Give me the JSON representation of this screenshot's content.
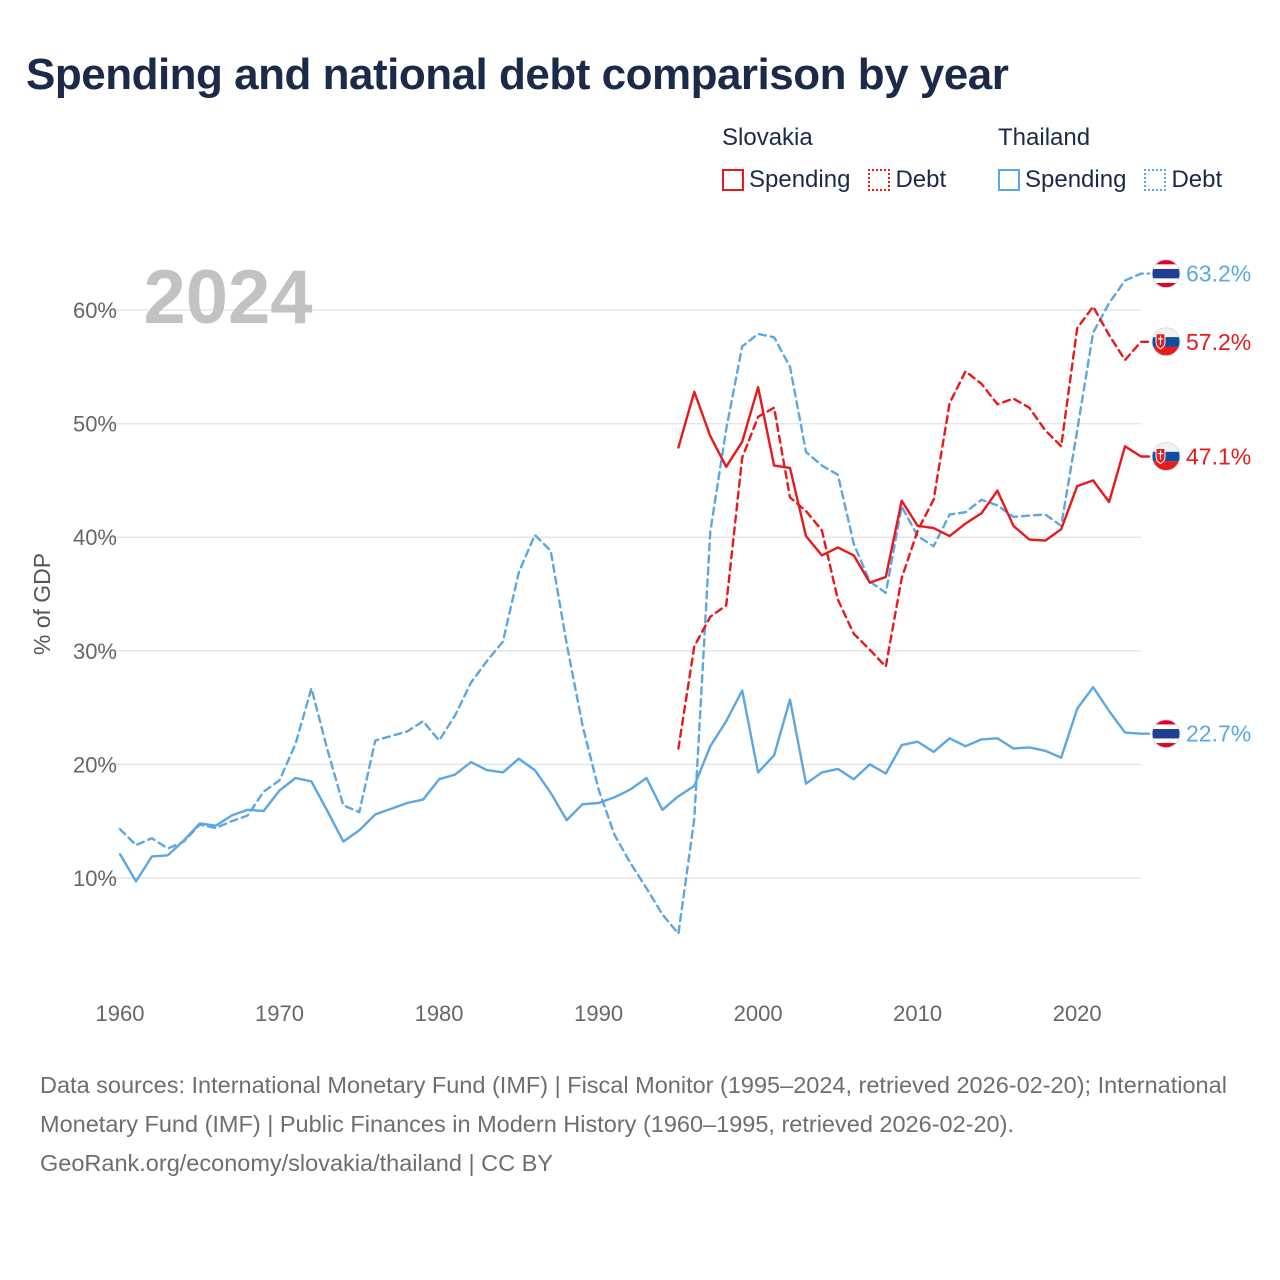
{
  "title": "Spending and national debt comparison by year",
  "legend": {
    "groups": [
      {
        "name": "Slovakia",
        "color": "#e8191b",
        "items": [
          {
            "label": "Spending",
            "style": "solid"
          },
          {
            "label": "Debt",
            "style": "dotted"
          }
        ]
      },
      {
        "name": "Thailand",
        "color": "#5ca7e3",
        "items": [
          {
            "label": "Spending",
            "style": "solid"
          },
          {
            "label": "Debt",
            "style": "dotted"
          }
        ]
      }
    ]
  },
  "year_label": "2024",
  "footer": {
    "sources": "Data sources: International Monetary Fund (IMF) | Fiscal Monitor (1995–2024, retrieved 2026-02-20); International Monetary Fund (IMF) | Public Finances in Modern History (1960–1995, retrieved 2026-02-20).",
    "credit": "GeoRank.org/economy/slovakia/thailand | CC BY"
  },
  "chart_data": {
    "type": "line",
    "title": "Spending and national debt comparison by year",
    "xlabel": "",
    "ylabel": "% of GDP",
    "xlim": [
      1960,
      2024
    ],
    "ylim": [
      0,
      65
    ],
    "x_ticks": [
      1960,
      1970,
      1980,
      1990,
      2000,
      2010,
      2020
    ],
    "y_ticks": [
      10,
      20,
      30,
      40,
      50,
      60
    ],
    "y_tick_labels": [
      "10%",
      "20%",
      "30%",
      "40%",
      "50%",
      "60%"
    ],
    "grid": true,
    "series": [
      {
        "name": "Thailand Spending",
        "color": "#5ca7e3",
        "dash": "solid",
        "start_year": 1960,
        "end_label": "22.7%",
        "flag": "thailand",
        "values": [
          12.1,
          9.7,
          11.9,
          12.0,
          13.3,
          14.8,
          14.6,
          15.5,
          16.0,
          15.9,
          17.7,
          18.8,
          18.5,
          15.9,
          13.2,
          14.2,
          15.6,
          16.1,
          16.6,
          16.9,
          18.7,
          19.1,
          20.2,
          19.5,
          19.3,
          20.5,
          19.5,
          17.5,
          15.1,
          16.5,
          16.6,
          17.1,
          17.8,
          18.8,
          16.0,
          17.2,
          18.1,
          21.6,
          23.8,
          26.5,
          19.3,
          20.8,
          25.7,
          18.3,
          19.3,
          19.6,
          18.7,
          20.0,
          19.2,
          21.7,
          22.0,
          21.1,
          22.3,
          21.6,
          22.2,
          22.3,
          21.4,
          21.5,
          21.2,
          20.6,
          24.9,
          26.8,
          24.7,
          22.8,
          22.7
        ]
      },
      {
        "name": "Thailand Debt",
        "color": "#5ca7e3",
        "dash": "dashed",
        "start_year": 1960,
        "end_label": "63.2%",
        "flag": "thailand",
        "values": [
          14.3,
          12.9,
          13.5,
          12.6,
          13.2,
          14.7,
          14.4,
          15.0,
          15.5,
          17.6,
          18.6,
          21.8,
          26.7,
          21.3,
          16.4,
          15.8,
          22.1,
          22.5,
          22.9,
          23.8,
          22.1,
          24.3,
          27.2,
          29.1,
          30.8,
          36.9,
          40.2,
          38.8,
          30.6,
          23.4,
          17.8,
          13.8,
          11.3,
          9.1,
          6.8,
          5.1,
          15.2,
          40.5,
          49.5,
          56.8,
          57.9,
          57.6,
          55.0,
          47.5,
          46.3,
          45.5,
          39.4,
          36.1,
          35.1,
          42.7,
          40.1,
          39.2,
          42.0,
          42.2,
          43.3,
          42.8,
          41.8,
          41.9,
          42.0,
          41.0,
          49.4,
          58.0,
          60.6,
          62.6,
          63.2
        ]
      },
      {
        "name": "Slovakia Spending",
        "color": "#e8191b",
        "dash": "solid",
        "start_year": 1995,
        "end_label": "47.1%",
        "flag": "slovakia",
        "values": [
          47.9,
          52.8,
          48.9,
          46.2,
          48.4,
          53.2,
          46.3,
          46.1,
          40.1,
          38.4,
          39.1,
          38.4,
          36.0,
          36.5,
          43.2,
          41.0,
          40.8,
          40.1,
          41.2,
          42.1,
          44.1,
          41.0,
          39.8,
          39.7,
          40.7,
          44.5,
          45.0,
          43.1,
          48.0,
          47.1
        ]
      },
      {
        "name": "Slovakia Debt",
        "color": "#e8191b",
        "dash": "dashed",
        "start_year": 1995,
        "end_label": "57.2%",
        "flag": "slovakia",
        "values": [
          21.4,
          30.4,
          33.0,
          34.0,
          47.0,
          50.6,
          51.4,
          43.5,
          42.3,
          40.6,
          34.5,
          31.5,
          30.1,
          28.6,
          36.4,
          40.6,
          43.3,
          51.8,
          54.6,
          53.5,
          51.7,
          52.2,
          51.4,
          49.4,
          48.0,
          58.4,
          60.3,
          57.8,
          55.6,
          57.2
        ]
      }
    ]
  }
}
